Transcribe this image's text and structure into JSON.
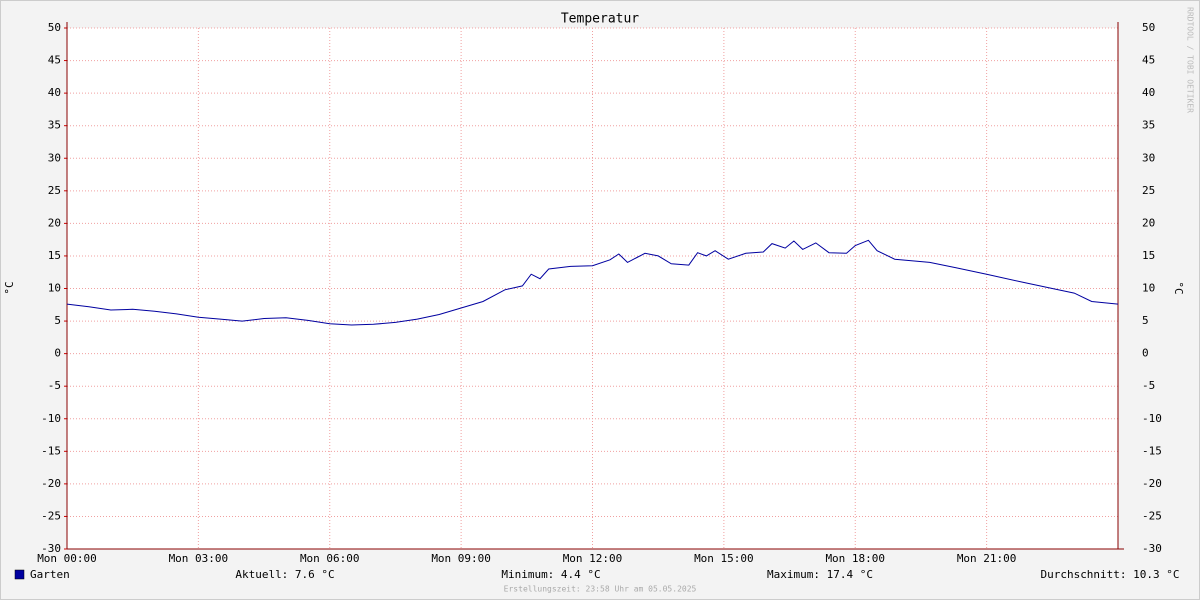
{
  "chart_data": {
    "type": "line",
    "title": "Temperatur",
    "y_label": "°C",
    "xlim": [
      0,
      24
    ],
    "xticks": [
      {
        "value": 0,
        "label": "Mon 00:00"
      },
      {
        "value": 3,
        "label": "Mon 03:00"
      },
      {
        "value": 6,
        "label": "Mon 06:00"
      },
      {
        "value": 9,
        "label": "Mon 09:00"
      },
      {
        "value": 12,
        "label": "Mon 12:00"
      },
      {
        "value": 15,
        "label": "Mon 15:00"
      },
      {
        "value": 18,
        "label": "Mon 18:00"
      },
      {
        "value": 21,
        "label": "Mon 21:00"
      }
    ],
    "ylim": [
      -30,
      50
    ],
    "yticks": [
      -30,
      -25,
      -20,
      -15,
      -10,
      -5,
      0,
      5,
      10,
      15,
      20,
      25,
      30,
      35,
      40,
      45,
      50
    ],
    "grid": true,
    "x": [
      0,
      0.5,
      1,
      1.5,
      2,
      2.5,
      3,
      3.5,
      4,
      4.5,
      5,
      5.5,
      6,
      6.5,
      7,
      7.5,
      8,
      8.5,
      9,
      9.5,
      10,
      10.4,
      10.6,
      10.8,
      11,
      11.5,
      12,
      12.4,
      12.6,
      12.8,
      13.2,
      13.5,
      13.8,
      14.2,
      14.4,
      14.6,
      14.8,
      15.1,
      15.5,
      15.9,
      16.1,
      16.4,
      16.6,
      16.8,
      17.1,
      17.4,
      17.8,
      18.0,
      18.3,
      18.5,
      18.9,
      19.7,
      20.3,
      21,
      21.8,
      22.5,
      23,
      23.4,
      24
    ],
    "series": [
      {
        "name": "Garten",
        "color": "#0000a0",
        "values": [
          7.6,
          7.2,
          6.7,
          6.8,
          6.5,
          6.1,
          5.6,
          5.3,
          5.0,
          5.4,
          5.5,
          5.1,
          4.6,
          4.4,
          4.5,
          4.8,
          5.3,
          6.0,
          7.0,
          8.0,
          9.8,
          10.4,
          12.2,
          11.5,
          13.0,
          13.4,
          13.5,
          14.4,
          15.3,
          14.0,
          15.4,
          15.0,
          13.8,
          13.6,
          15.5,
          15.0,
          15.8,
          14.5,
          15.4,
          15.6,
          16.9,
          16.2,
          17.3,
          16.0,
          17.0,
          15.5,
          15.4,
          16.6,
          17.4,
          15.8,
          14.5,
          14.0,
          13.2,
          12.2,
          11.0,
          10.0,
          9.3,
          8.0,
          7.6
        ]
      }
    ],
    "stats": [
      "Aktuell: 7.6 °C",
      "Minimum: 4.4 °C",
      "Maximum: 17.4 °C",
      "Durchschnitt: 10.3 °C"
    ],
    "footer": "Erstellungszeit: 23:58 Uhr am 05.05.2025",
    "watermark": "RRDTOOL / TOBI OETIKER"
  }
}
